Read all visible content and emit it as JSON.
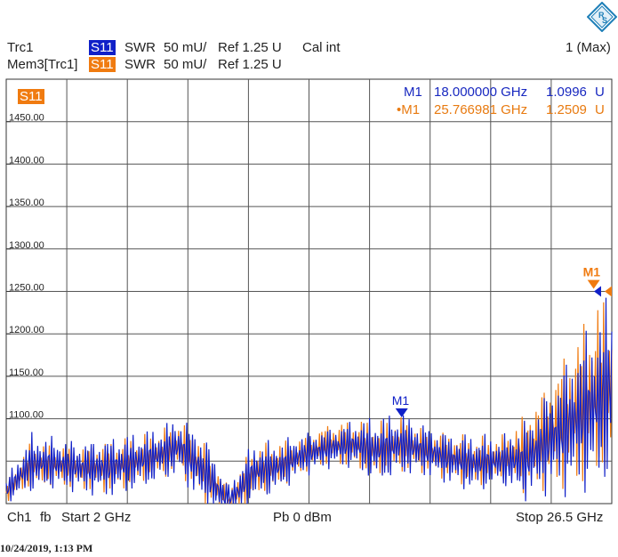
{
  "header": {
    "trace1": {
      "name": "Trc1",
      "badge": "S11",
      "format": "SWR",
      "scale": "50 mU/",
      "ref": "Ref 1.25 U",
      "cal": "Cal int"
    },
    "trace2": {
      "name": "Mem3[Trc1]",
      "badge": "S11",
      "format": "SWR",
      "scale": "50 mU/",
      "ref": "Ref 1.25 U"
    },
    "window": "1 (Max)"
  },
  "plot": {
    "badge": "S11",
    "markers": [
      {
        "label": "M1",
        "freq": "18.000000 GHz",
        "value": "1.0996",
        "unit": "U",
        "color": "#1828c0"
      },
      {
        "label": "•M1",
        "freq": "25.766981 GHz",
        "value": "1.2509",
        "unit": "U",
        "color": "#e87a10"
      }
    ],
    "marker_tags": {
      "blue": "M1",
      "orange": "M1"
    }
  },
  "footer": {
    "channel": "Ch1",
    "fb": "fb",
    "start": "Start  2 GHz",
    "power": "Pb   0 dBm",
    "stop": "Stop  26.5 GHz"
  },
  "timestamp": "10/24/2019, 1:13 PM",
  "colors": {
    "trace_blue": "#1020c8",
    "trace_orange": "#f07b10",
    "grid": "#555555"
  },
  "chart_data": {
    "type": "line",
    "x_range_ghz": [
      2,
      26.5
    ],
    "y_range": [
      1000,
      1500
    ],
    "yticks": [
      "1450.00",
      "1400.00",
      "1350.00",
      "1300.00",
      "1250.00",
      "1200.00",
      "1150.00",
      "1100.00"
    ],
    "ytick_values": [
      1450,
      1400,
      1350,
      1300,
      1250,
      1200,
      1150,
      1100
    ],
    "series": [
      {
        "name": "Trc1",
        "color": "#1020c8",
        "envelope_x_ghz": [
          2,
          3,
          4,
          5,
          6,
          7,
          8,
          9,
          10,
          11,
          12,
          13,
          14,
          15,
          16,
          17,
          18,
          19,
          20,
          21,
          22,
          23,
          24,
          25,
          26,
          26.5
        ],
        "envelope_low": [
          1000,
          1010,
          1015,
          1010,
          1005,
          1010,
          1020,
          1030,
          990,
          975,
          1000,
          1010,
          1030,
          1040,
          1040,
          1020,
          1030,
          1030,
          1020,
          1010,
          1020,
          1000,
          1010,
          1005,
          1010,
          1020
        ],
        "envelope_high": [
          1030,
          1085,
          1080,
          1075,
          1080,
          1085,
          1090,
          1105,
          1085,
          1025,
          1075,
          1075,
          1085,
          1090,
          1100,
          1105,
          1110,
          1095,
          1085,
          1085,
          1080,
          1100,
          1140,
          1190,
          1230,
          1260
        ]
      },
      {
        "name": "Mem3[Trc1]",
        "color": "#f07b10",
        "envelope_x_ghz": [
          2,
          3,
          4,
          5,
          6,
          7,
          8,
          9,
          10,
          11,
          12,
          13,
          14,
          15,
          16,
          17,
          18,
          19,
          20,
          21,
          22,
          23,
          24,
          25,
          26,
          26.5
        ],
        "envelope_low": [
          1000,
          1015,
          1020,
          1015,
          1010,
          1015,
          1025,
          1035,
          1000,
          980,
          1000,
          1015,
          1035,
          1045,
          1040,
          1025,
          1035,
          1035,
          1025,
          1015,
          1025,
          1010,
          1015,
          1010,
          1015,
          1025
        ],
        "envelope_high": [
          1025,
          1075,
          1070,
          1070,
          1075,
          1080,
          1085,
          1100,
          1080,
          1020,
          1070,
          1075,
          1080,
          1095,
          1100,
          1100,
          1105,
          1090,
          1085,
          1080,
          1080,
          1110,
          1150,
          1200,
          1250,
          1240
        ]
      }
    ],
    "markers": [
      {
        "label": "M1",
        "series": "Trc1",
        "x_ghz": 18.0,
        "y": 1099.6
      },
      {
        "label": "M1",
        "series": "Mem3[Trc1]",
        "x_ghz": 25.766981,
        "y": 1250.9
      }
    ]
  }
}
